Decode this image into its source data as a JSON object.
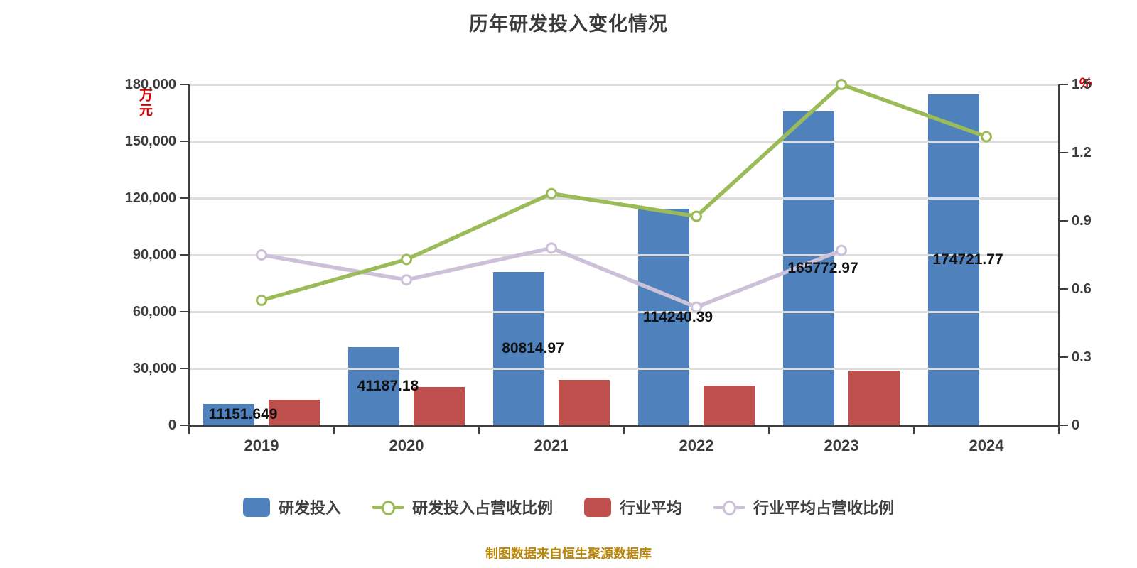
{
  "chart_data": {
    "type": "bar",
    "title": "历年研发投入变化情况",
    "source_note": "制图数据来自恒生聚源数据库",
    "categories": [
      "2019",
      "2020",
      "2021",
      "2022",
      "2023",
      "2024"
    ],
    "left_axis": {
      "unit": "万元",
      "max": 180000,
      "tick_labels": [
        "0",
        "30,000",
        "60,000",
        "90,000",
        "120,000",
        "150,000",
        "180,000"
      ]
    },
    "right_axis": {
      "unit": "%",
      "max": 1.5,
      "tick_labels": [
        "0",
        "0.3",
        "0.6",
        "0.9",
        "1.2",
        "1.5"
      ]
    },
    "grid": true,
    "legend_position": "bottom",
    "series": [
      {
        "name": "研发投入",
        "type": "bar",
        "axis": "left",
        "color": "#4f81bd",
        "values": [
          11151.649,
          41187.18,
          80814.97,
          114240.39,
          165772.97,
          174721.77
        ],
        "data_labels": [
          "11151.649",
          "41187.18",
          "80814.97",
          "114240.39",
          "165772.97",
          "174721.77"
        ]
      },
      {
        "name": "研发投入占营收比例",
        "type": "line",
        "axis": "right",
        "color": "#9bbb59",
        "values": [
          0.55,
          0.73,
          1.02,
          0.92,
          1.5,
          1.27
        ]
      },
      {
        "name": "行业平均",
        "type": "bar",
        "axis": "left",
        "color": "#c0504d",
        "values": [
          13500,
          20250,
          24000,
          21000,
          29000,
          null
        ]
      },
      {
        "name": "行业平均占营收比例",
        "type": "line",
        "axis": "right",
        "color": "#ccc1d9",
        "values": [
          0.75,
          0.64,
          0.78,
          0.52,
          0.77,
          null
        ]
      }
    ]
  }
}
